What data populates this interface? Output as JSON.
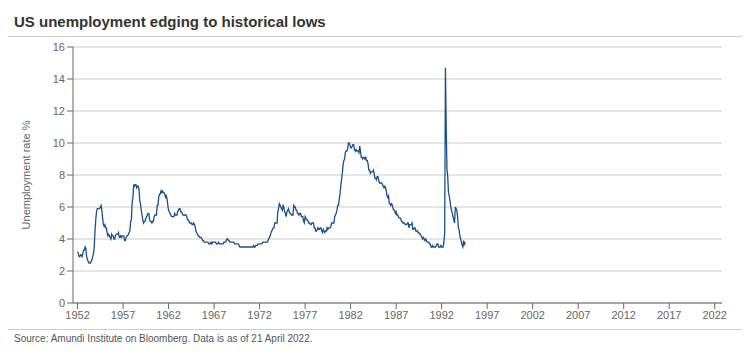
{
  "chart_data": {
    "type": "line",
    "title": "US unemployment edging to historical lows",
    "ylabel": "Unemployment rate %",
    "source": "Source: Amundi Institute on Bloomberg. Data is as of 21 April 2022.",
    "color": "#1B4F8A",
    "grid": true,
    "ylim": [
      0,
      16
    ],
    "yticks": [
      0,
      2,
      4,
      6,
      8,
      10,
      12,
      14,
      16
    ],
    "xlim": [
      1951.5,
      2022.8
    ],
    "xticks": [
      1952,
      1957,
      1962,
      1967,
      1972,
      1977,
      1982,
      1987,
      1992,
      1997,
      2002,
      2007,
      2012,
      2017,
      2022
    ],
    "x": [
      1952,
      1952.0833,
      1952.1667,
      1952.25,
      1952.3333,
      1952.4167,
      1952.5,
      1952.5833,
      1952.6667,
      1952.75,
      1952.8333,
      1952.9167,
      1953,
      1953.0833,
      1953.1667,
      1953.25,
      1953.3333,
      1953.4167,
      1953.5,
      1953.5833,
      1953.6667,
      1953.75,
      1953.8333,
      1953.9167,
      1954,
      1954.0833,
      1954.1667,
      1954.25,
      1954.3333,
      1954.4167,
      1954.5,
      1954.5833,
      1954.6667,
      1954.75,
      1954.8333,
      1954.9167,
      1955,
      1955.0833,
      1955.1667,
      1955.25,
      1955.3333,
      1955.4167,
      1955.5,
      1955.5833,
      1955.6667,
      1955.75,
      1955.8333,
      1955.9167,
      1956,
      1956.0833,
      1956.1667,
      1956.25,
      1956.3333,
      1956.4167,
      1956.5,
      1956.5833,
      1956.6667,
      1956.75,
      1956.8333,
      1956.9167,
      1957,
      1957.0833,
      1957.1667,
      1957.25,
      1957.3333,
      1957.4167,
      1957.5,
      1957.5833,
      1957.6667,
      1957.75,
      1957.8333,
      1957.9167,
      1958,
      1958.0833,
      1958.1667,
      1958.25,
      1958.3333,
      1958.4167,
      1958.5,
      1958.5833,
      1958.6667,
      1958.75,
      1958.8333,
      1958.9167,
      1959,
      1959.0833,
      1959.1667,
      1959.25,
      1959.3333,
      1959.4167,
      1959.5,
      1959.5833,
      1959.6667,
      1959.75,
      1959.8333,
      1959.9167,
      1960,
      1960.0833,
      1960.1667,
      1960.25,
      1960.3333,
      1960.4167,
      1960.5,
      1960.5833,
      1960.6667,
      1960.75,
      1960.8333,
      1960.9167,
      1961,
      1961.0833,
      1961.1667,
      1961.25,
      1961.3333,
      1961.4167,
      1961.5,
      1961.5833,
      1961.6667,
      1961.75,
      1961.8333,
      1961.9167,
      1962,
      1962.0833,
      1962.1667,
      1962.25,
      1962.3333,
      1962.4167,
      1962.5,
      1962.5833,
      1962.6667,
      1962.75,
      1962.8333,
      1962.9167,
      1963,
      1963.0833,
      1963.1667,
      1963.25,
      1963.3333,
      1963.4167,
      1963.5,
      1963.5833,
      1963.6667,
      1963.75,
      1963.8333,
      1963.9167,
      1964,
      1964.0833,
      1964.1667,
      1964.25,
      1964.3333,
      1964.4167,
      1964.5,
      1964.5833,
      1964.6667,
      1964.75,
      1964.8333,
      1964.9167,
      1965,
      1965.0833,
      1965.1667,
      1965.25,
      1965.3333,
      1965.4167,
      1965.5,
      1965.5833,
      1965.6667,
      1965.75,
      1965.8333,
      1965.9167,
      1966,
      1966.0833,
      1966.1667,
      1966.25,
      1966.3333,
      1966.4167,
      1966.5,
      1966.5833,
      1966.6667,
      1966.75,
      1966.8333,
      1966.9167,
      1967,
      1967.0833,
      1967.1667,
      1967.25,
      1967.3333,
      1967.4167,
      1967.5,
      1967.5833,
      1967.6667,
      1967.75,
      1967.8333,
      1967.9167,
      1968,
      1968.0833,
      1968.1667,
      1968.25,
      1968.3333,
      1968.4167,
      1968.5,
      1968.5833,
      1968.6667,
      1968.75,
      1968.8333,
      1968.9167,
      1969,
      1969.0833,
      1969.1667,
      1969.25,
      1969.3333,
      1969.4167,
      1969.5,
      1969.5833,
      1969.6667,
      1969.75,
      1969.8333,
      1969.9167,
      1970,
      1970.0833,
      1970.1667,
      1970.25,
      1970.3333,
      1970.4167,
      1970.5,
      1970.5833,
      1970.6667,
      1970.75,
      1970.8333,
      1970.9167,
      1971,
      1971.0833,
      1971.1667,
      1971.25,
      1971.3333,
      1971.4167,
      1971.5,
      1971.5833,
      1971.6667,
      1971.75,
      1971.8333,
      1971.9167,
      1972,
      1972.0833,
      1972.1667,
      1972.25,
      1972.3333,
      1972.4167,
      1972.5,
      1972.5833,
      1972.6667,
      1972.75,
      1972.8333,
      1972.9167,
      1973,
      1973.0833,
      1973.1667,
      1973.25,
      1973.3333,
      1973.4167,
      1973.5,
      1973.5833,
      1973.6667,
      1973.75,
      1973.8333,
      1973.9167,
      1974,
      1974.0833,
      1974.1667,
      1974.25,
      1974.3333,
      1974.4167,
      1974.5,
      1974.5833,
      1974.6667,
      1974.75,
      1974.8333,
      1974.9167,
      1975,
      1975.0833,
      1975.1667,
      1975.25,
      1975.3333,
      1975.4167,
      1975.5,
      1975.5833,
      1975.6667,
      1975.75,
      1975.8333,
      1975.9167,
      1976,
      1976.0833,
      1976.1667,
      1976.25,
      1976.3333,
      1976.4167,
      1976.5,
      1976.5833,
      1976.6667,
      1976.75,
      1976.8333,
      1976.9167,
      1977,
      1977.0833,
      1977.1667,
      1977.25,
      1977.3333,
      1977.4167,
      1977.5,
      1977.5833,
      1977.6667,
      1977.75,
      1977.8333,
      1977.9167,
      1978,
      1978.0833,
      1978.1667,
      1978.25,
      1978.3333,
      1978.4167,
      1978.5,
      1978.5833,
      1978.6667,
      1978.75,
      1978.8333,
      1978.9167,
      1979,
      1979.0833,
      1979.1667,
      1979.25,
      1979.3333,
      1979.4167,
      1979.5,
      1979.5833,
      1979.6667,
      1979.75,
      1979.8333,
      1979.9167,
      1980,
      1980.0833,
      1980.1667,
      1980.25,
      1980.3333,
      1980.4167,
      1980.5,
      1980.5833,
      1980.6667,
      1980.75,
      1980.8333,
      1980.9167,
      1981,
      1981.0833,
      1981.1667,
      1981.25,
      1981.3333,
      1981.4167,
      1981.5,
      1981.5833,
      1981.6667,
      1981.75,
      1981.8333,
      1981.9167,
      1982,
      1982.0833,
      1982.1667,
      1982.25,
      1982.3333,
      1982.4167,
      1982.5,
      1982.5833,
      1982.6667,
      1982.75,
      1982.8333,
      1982.9167,
      1983,
      1983.0833,
      1983.1667,
      1983.25,
      1983.3333,
      1983.4167,
      1983.5,
      1983.5833,
      1983.6667,
      1983.75,
      1983.8333,
      1983.9167,
      1984,
      1984.0833,
      1984.1667,
      1984.25,
      1984.3333,
      1984.4167,
      1984.5,
      1984.5833,
      1984.6667,
      1984.75,
      1984.8333,
      1984.9167,
      1985,
      1985.0833,
      1985.1667,
      1985.25,
      1985.3333,
      1985.4167,
      1985.5,
      1985.5833,
      1985.6667,
      1985.75,
      1985.8333,
      1985.9167,
      1986,
      1986.0833,
      1986.1667,
      1986.25,
      1986.3333,
      1986.4167,
      1986.5,
      1986.5833,
      1986.6667,
      1986.75,
      1986.8333,
      1986.9167,
      1987,
      1987.0833,
      1987.1667,
      1987.25,
      1987.3333,
      1987.4167,
      1987.5,
      1987.5833,
      1987.6667,
      1987.75,
      1987.8333,
      1987.9167,
      1988,
      1988.0833,
      1988.1667,
      1988.25,
      1988.3333,
      1988.4167,
      1988.5,
      1988.5833,
      1988.6667,
      1988.75,
      1988.8333,
      1988.9167,
      1989,
      1989.0833,
      1989.1667,
      1989.25,
      1989.3333,
      1989.4167,
      1989.5,
      1989.5833,
      1989.6667,
      1989.75,
      1989.8333,
      1989.9167,
      1990,
      1990.0833,
      1990.1667,
      1990.25,
      1990.3333,
      1990.4167,
      1990.5,
      1990.5833,
      1990.6667,
      1990.75,
      1990.8333,
      1990.9167,
      1991,
      1991.0833,
      1991.1667,
      1991.25,
      1991.3333,
      1991.4167,
      1991.5,
      1991.5833,
      1991.6667,
      1991.75,
      1991.8333,
      1991.9167,
      1992,
      1992.0833,
      1992.1667,
      1992.25,
      1992.3333,
      1992.4167,
      1992.5,
      1992.5833,
      1992.6667,
      1992.75,
      1992.8333,
      1992.9167,
      1993,
      1993.0833,
      1993.1667,
      1993.25,
      1993.3333,
      1993.4167,
      1993.5,
      1993.5833,
      1993.6667,
      1993.75,
      1993.8333,
      1993.9167,
      1994,
      1994.0833,
      1994.1667,
      1994.25,
      1994.3333,
      1994.4167,
      1994.5,
      1994.5833
    ],
    "values": [
      3.2,
      3.1,
      2.9,
      2.9,
      3.0,
      3.0,
      2.9,
      3.1,
      3.3,
      3.3,
      3.5,
      3.4,
      2.9,
      2.7,
      2.6,
      2.5,
      2.5,
      2.5,
      2.6,
      2.7,
      2.9,
      3.1,
      3.5,
      4.5,
      5.2,
      5.7,
      5.9,
      5.9,
      5.9,
      5.9,
      6.0,
      6.1,
      5.8,
      5.3,
      4.9,
      4.8,
      4.9,
      4.7,
      4.7,
      4.4,
      4.2,
      4.3,
      4.2,
      4.1,
      4.0,
      4.3,
      4.2,
      4.2,
      4.0,
      4.0,
      4.2,
      4.3,
      4.3,
      4.3,
      4.4,
      4.1,
      4.1,
      4.2,
      4.1,
      4.2,
      4.2,
      4.2,
      3.9,
      3.9,
      4.1,
      4.2,
      4.2,
      4.3,
      4.4,
      4.5,
      5.1,
      5.2,
      6.3,
      6.6,
      7.4,
      7.3,
      7.4,
      7.4,
      7.2,
      7.3,
      7.3,
      7.1,
      6.4,
      6.2,
      5.8,
      5.5,
      5.2,
      5.0,
      5.1,
      5.1,
      5.3,
      5.4,
      5.5,
      5.6,
      5.6,
      5.2,
      5.1,
      5.1,
      5.0,
      5.1,
      5.1,
      5.4,
      5.5,
      5.5,
      5.5,
      6.1,
      6.1,
      6.6,
      6.8,
      6.8,
      7.0,
      6.9,
      7.0,
      6.9,
      6.9,
      6.8,
      6.6,
      6.7,
      6.5,
      6.1,
      5.8,
      5.7,
      5.6,
      5.5,
      5.4,
      5.4,
      5.4,
      5.4,
      5.6,
      5.5,
      5.5,
      5.5,
      5.7,
      5.8,
      5.9,
      5.9,
      5.7,
      5.7,
      5.6,
      5.5,
      5.5,
      5.5,
      5.5,
      5.5,
      5.4,
      5.2,
      5.2,
      5.1,
      5.0,
      5.0,
      5.0,
      4.9,
      4.9,
      5.0,
      4.9,
      4.8,
      4.5,
      4.4,
      4.3,
      4.2,
      4.2,
      4.1,
      4.1,
      4.1,
      4.0,
      3.9,
      3.9,
      3.8,
      3.8,
      3.8,
      3.8,
      3.8,
      3.8,
      3.7,
      3.7,
      3.7,
      3.8,
      3.7,
      3.8,
      3.8,
      3.8,
      3.8,
      3.8,
      3.7,
      3.7,
      3.7,
      3.8,
      3.7,
      3.7,
      3.7,
      3.7,
      3.7,
      3.7,
      3.8,
      3.8,
      3.8,
      3.9,
      4.0,
      4.0,
      3.9,
      3.9,
      3.8,
      3.8,
      3.8,
      3.8,
      3.8,
      3.8,
      3.7,
      3.7,
      3.7,
      3.7,
      3.7,
      3.7,
      3.6,
      3.5,
      3.5,
      3.5,
      3.5,
      3.5,
      3.5,
      3.5,
      3.5,
      3.5,
      3.5,
      3.5,
      3.5,
      3.5,
      3.5,
      3.5,
      3.5,
      3.5,
      3.5,
      3.6,
      3.5,
      3.5,
      3.6,
      3.6,
      3.6,
      3.7,
      3.7,
      3.7,
      3.7,
      3.7,
      3.7,
      3.8,
      3.8,
      3.8,
      3.8,
      3.8,
      3.8,
      3.8,
      3.9,
      4.0,
      4.1,
      4.2,
      4.4,
      4.5,
      4.6,
      4.7,
      4.7,
      5.0,
      5.0,
      5.0,
      5.0,
      5.7,
      5.9,
      6.2,
      6.1,
      6.0,
      5.9,
      5.8,
      6.1,
      6.0,
      5.7,
      5.6,
      5.4,
      5.7,
      5.8,
      5.9,
      5.7,
      5.6,
      5.6,
      5.5,
      5.5,
      5.5,
      6.1,
      6.0,
      6.0,
      5.8,
      5.8,
      5.6,
      5.6,
      5.5,
      5.6,
      5.6,
      5.4,
      5.4,
      5.4,
      5.1,
      5.0,
      5.4,
      5.3,
      5.2,
      5.2,
      5.1,
      5.0,
      5.0,
      4.9,
      4.9,
      5.0,
      5.0,
      5.0,
      4.7,
      4.7,
      4.5,
      4.5,
      4.6,
      4.7,
      4.6,
      4.6,
      4.7,
      4.7,
      4.5,
      4.4,
      4.6,
      4.5,
      4.4,
      4.5,
      4.5,
      4.7,
      4.6,
      4.7,
      4.7,
      4.7,
      4.8,
      5.0,
      5.0,
      5.0,
      5.0,
      5.4,
      5.5,
      5.6,
      5.8,
      6.1,
      6.1,
      6.5,
      6.8,
      7.3,
      7.7,
      8.1,
      8.6,
      8.9,
      9.0,
      9.4,
      9.5,
      9.5,
      9.6,
      10.0,
      10.0,
      9.9,
      9.7,
      9.7,
      9.8,
      9.9,
      9.9,
      9.6,
      9.5,
      9.6,
      9.5,
      9.5,
      9.5,
      9.4,
      9.8,
      9.5,
      9.1,
      9.1,
      9.0,
      9.1,
      9.1,
      9.0,
      9.1,
      8.9,
      8.9,
      8.7,
      8.3,
      8.3,
      8.1,
      8.2,
      8.2,
      8.2,
      8.3,
      8.1,
      7.8,
      7.8,
      7.7,
      7.9,
      7.9,
      7.7,
      7.5,
      7.5,
      7.5,
      7.5,
      7.4,
      7.3,
      7.2,
      7.3,
      7.2,
      7.0,
      6.7,
      6.6,
      6.7,
      6.2,
      6.2,
      6.1,
      6.2,
      6.1,
      5.9,
      5.8,
      5.8,
      5.6,
      5.7,
      5.5,
      5.5,
      5.4,
      5.3,
      5.3,
      5.3,
      5.1,
      5.1,
      5.0,
      5.0,
      5.0,
      4.9,
      4.9,
      4.9,
      5.0,
      5.0,
      4.7,
      4.9,
      4.9,
      4.9,
      5.0,
      4.6,
      4.6,
      4.7,
      4.7,
      4.5,
      4.5,
      4.5,
      4.4,
      4.4,
      4.3,
      4.3,
      4.2,
      4.1,
      4.0,
      4.1,
      4.0,
      3.9,
      4.0,
      3.9,
      3.8,
      3.8,
      3.8,
      3.7,
      3.7,
      3.5,
      3.5,
      3.6,
      3.5,
      3.5,
      3.5,
      3.5,
      3.6,
      3.7,
      3.7,
      3.5,
      3.5,
      3.5,
      3.6,
      3.5,
      3.5,
      3.5,
      3.8,
      4.4,
      14.7,
      11.1,
      8.4,
      7.9,
      6.9,
      6.7,
      6.4,
      6.0,
      5.8,
      5.6,
      5.4,
      5.2,
      5.0,
      6.0,
      5.9,
      5.8,
      5.4,
      4.7,
      4.6,
      4.2,
      4.0,
      3.8,
      3.6,
      3.5,
      3.9,
      3.6,
      3.8
    ]
  }
}
